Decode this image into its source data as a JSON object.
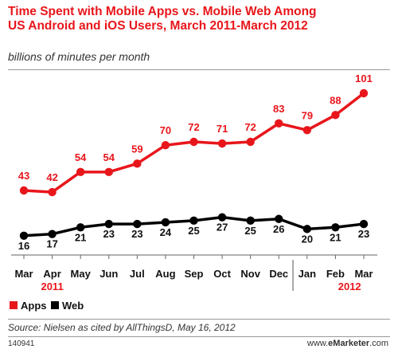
{
  "title_line1": "Time Spent with Mobile Apps vs. Mobile Web Among",
  "title_line2": "US Android and iOS Users, March 2011-March 2012",
  "subtitle": "billions of minutes per month",
  "source": "Source: Nielsen as cited by AllThingsD, May 16, 2012",
  "chart_id": "140941",
  "brand": {
    "prefix": "www.",
    "bold": "eMarketer",
    "suffix": ".com"
  },
  "colors": {
    "apps": "#e8161b",
    "web": "#000000",
    "year_label": "#e8161b",
    "divider": "#555555"
  },
  "chart_data": {
    "type": "line",
    "categories": [
      "Mar",
      "Apr",
      "May",
      "Jun",
      "Jul",
      "Aug",
      "Sep",
      "Oct",
      "Nov",
      "Dec",
      "Jan",
      "Feb",
      "Mar"
    ],
    "year_labels": [
      {
        "label": "2011",
        "category_index": 1
      },
      {
        "label": "2012",
        "category_index": 11.5
      }
    ],
    "year_divider_after_index": 9,
    "series": [
      {
        "name": "Apps",
        "values": [
          43,
          42,
          54,
          54,
          59,
          70,
          72,
          71,
          72,
          83,
          79,
          88,
          101
        ]
      },
      {
        "name": "Web",
        "values": [
          16,
          17,
          21,
          23,
          23,
          24,
          25,
          27,
          25,
          26,
          20,
          21,
          23
        ]
      }
    ],
    "ylim": [
      0,
      110
    ],
    "grid": false,
    "legend": "bottom-left"
  }
}
